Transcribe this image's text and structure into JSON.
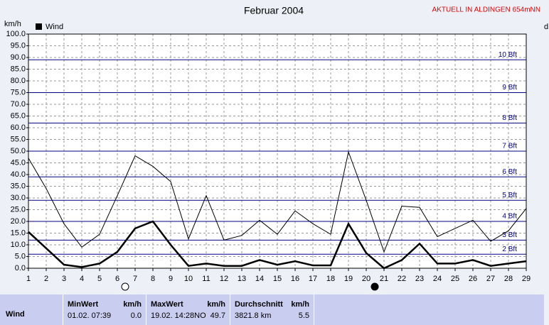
{
  "chart_data": {
    "type": "line",
    "title": "Februar 2004",
    "subtitle": "AKTUELL IN ALDINGEN 654mNN",
    "y_label": "km/h",
    "right_label": "d",
    "x": [
      1,
      2,
      3,
      4,
      5,
      6,
      7,
      8,
      9,
      10,
      11,
      12,
      13,
      14,
      15,
      16,
      17,
      18,
      19,
      20,
      21,
      22,
      23,
      24,
      25,
      26,
      27,
      28,
      29
    ],
    "xlim": [
      1,
      29
    ],
    "xticks": [
      1,
      2,
      3,
      4,
      5,
      6,
      7,
      8,
      9,
      10,
      11,
      12,
      13,
      14,
      15,
      16,
      17,
      18,
      19,
      20,
      21,
      22,
      23,
      24,
      25,
      26,
      27,
      28,
      29
    ],
    "ylim": [
      0,
      100
    ],
    "yticks": [
      {
        "value": 0,
        "label": "0.0"
      },
      {
        "value": 5,
        "label": "5.0"
      },
      {
        "value": 10,
        "label": "10.0"
      },
      {
        "value": 15,
        "label": "15.0"
      },
      {
        "value": 20,
        "label": "20.0"
      },
      {
        "value": 25,
        "label": "25.0"
      },
      {
        "value": 30,
        "label": "30.0"
      },
      {
        "value": 35,
        "label": "35.0"
      },
      {
        "value": 40,
        "label": "40.0"
      },
      {
        "value": 45,
        "label": "45.0"
      },
      {
        "value": 50,
        "label": "50.0"
      },
      {
        "value": 55,
        "label": "55.0"
      },
      {
        "value": 60,
        "label": "60.0"
      },
      {
        "value": 65,
        "label": "65.0"
      },
      {
        "value": 70,
        "label": "70.0"
      },
      {
        "value": 75,
        "label": "75.0"
      },
      {
        "value": 80,
        "label": "80.0"
      },
      {
        "value": 85,
        "label": "85.0"
      },
      {
        "value": 90,
        "label": "90.0"
      },
      {
        "value": 95,
        "label": "95.0"
      },
      {
        "value": 100,
        "label": "100.0"
      }
    ],
    "grid": true,
    "reference_lines": [
      {
        "value": 6,
        "label": "2 Bft"
      },
      {
        "value": 12,
        "label": "3 Bft"
      },
      {
        "value": 20,
        "label": "4 Bft"
      },
      {
        "value": 29,
        "label": "5 Bft"
      },
      {
        "value": 39,
        "label": "6 Bft"
      },
      {
        "value": 50,
        "label": "7 Bft"
      },
      {
        "value": 62,
        "label": "8 Bft"
      },
      {
        "value": 75,
        "label": "9 Bft"
      },
      {
        "value": 89,
        "label": "10 Bft"
      }
    ],
    "reference_color": "#000080",
    "series": [
      {
        "name": "Wind",
        "color": "#000000",
        "width": 2.5,
        "values": [
          15.5,
          8.5,
          1.5,
          0.5,
          2,
          7,
          17,
          20,
          10,
          1,
          2,
          1,
          1,
          3.5,
          1.5,
          3,
          1.2,
          1.2,
          19,
          6.5,
          0,
          3.5,
          10.5,
          2,
          2,
          3.5,
          1,
          2,
          3
        ]
      },
      {
        "color": "#000000",
        "width": 1,
        "values": [
          47,
          34,
          19,
          9,
          14.5,
          31,
          48,
          43.5,
          37,
          12.5,
          31,
          12,
          14,
          20.5,
          14.5,
          24.5,
          19,
          14.5,
          49.7,
          29,
          7,
          26.5,
          26,
          13.5,
          17,
          20.5,
          11.5,
          16,
          25.5
        ]
      }
    ]
  },
  "stats": {
    "row_label": "Wind",
    "columns": [
      {
        "title": "MinWert",
        "unit": "km/h",
        "date": "01.02.  07:39",
        "value": "0.0"
      },
      {
        "title": "MaxWert",
        "unit": "km/h",
        "date": "19.02.  14:28NO",
        "value": "49.7"
      },
      {
        "title": "Durchschnitt",
        "unit": "km/h",
        "date": "3821.8 km",
        "value": "5.5"
      }
    ]
  }
}
